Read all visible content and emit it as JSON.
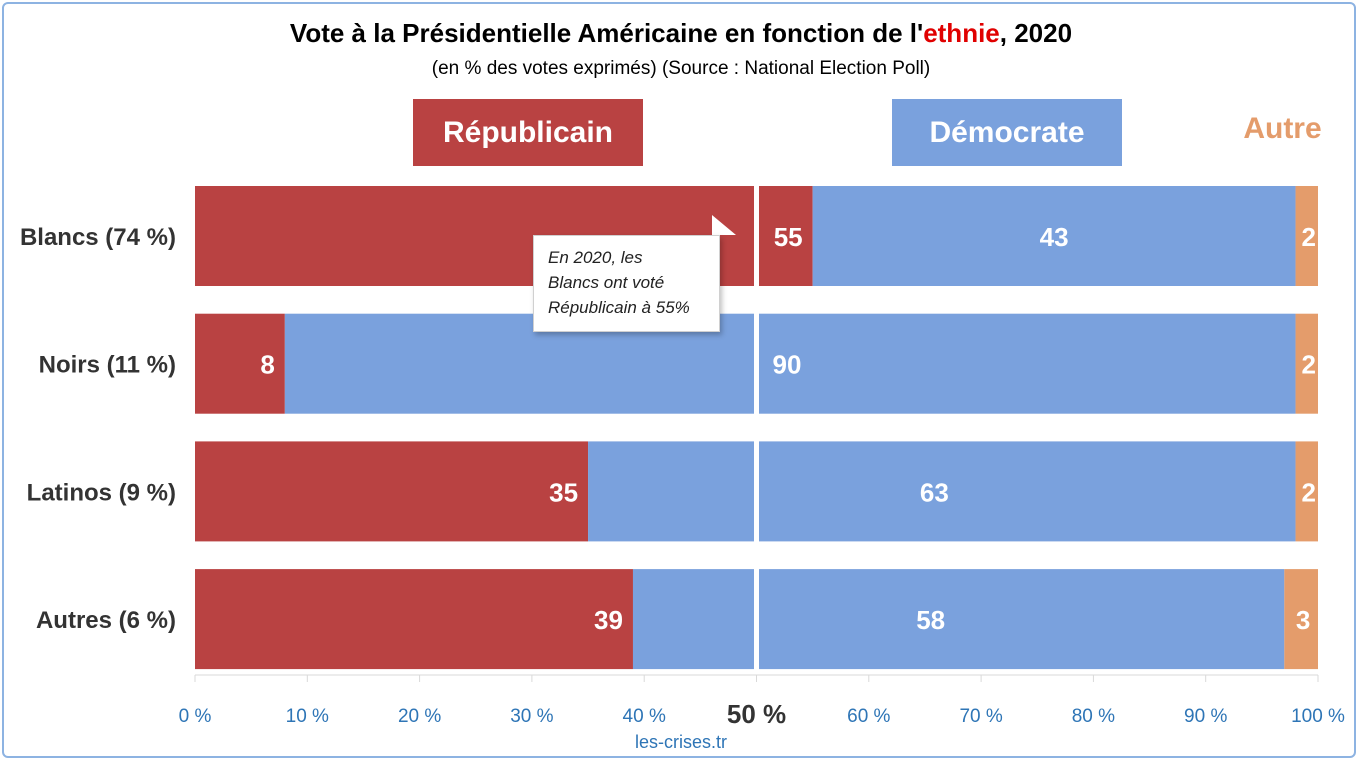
{
  "title_parts": [
    "Vote à la Présidentielle Américaine en fonction de l'",
    "ethnie",
    ", 2020"
  ],
  "subtitle": "(en % des votes exprimés) (Source : National Election Poll)",
  "legend": {
    "rep": "Républicain",
    "dem": "Démocrate",
    "other": "Autre"
  },
  "callout_lines": [
    "En 2020, les",
    "Blancs ont voté",
    "Républicain à 55%"
  ],
  "source": "les-crises.tr",
  "colors": {
    "rep": "#b94242",
    "dem": "#7aa1dd",
    "other": "#e49c6b",
    "axis_tick": "#2e75b6",
    "title_highlight": "#e00000"
  },
  "chart_data": {
    "type": "bar",
    "orientation": "horizontal",
    "stacked": true,
    "categories": [
      "Blancs (74 %)",
      "Noirs (11 %)",
      "Latinos (9 %)",
      "Autres (6 %)"
    ],
    "series": [
      {
        "name": "Républicain",
        "values": [
          55,
          8,
          35,
          39
        ]
      },
      {
        "name": "Démocrate",
        "values": [
          43,
          90,
          63,
          58
        ]
      },
      {
        "name": "Autre",
        "values": [
          2,
          2,
          2,
          3
        ]
      }
    ],
    "xlim": [
      0,
      100
    ],
    "x_ticks": [
      "0 %",
      "10 %",
      "20 %",
      "30 %",
      "40 %",
      "50 %",
      "60 %",
      "70 %",
      "80 %",
      "90 %",
      "100 %"
    ],
    "highlighted_tick": "50 %",
    "reference_line": 50,
    "grid": false,
    "legend_position": "top"
  }
}
